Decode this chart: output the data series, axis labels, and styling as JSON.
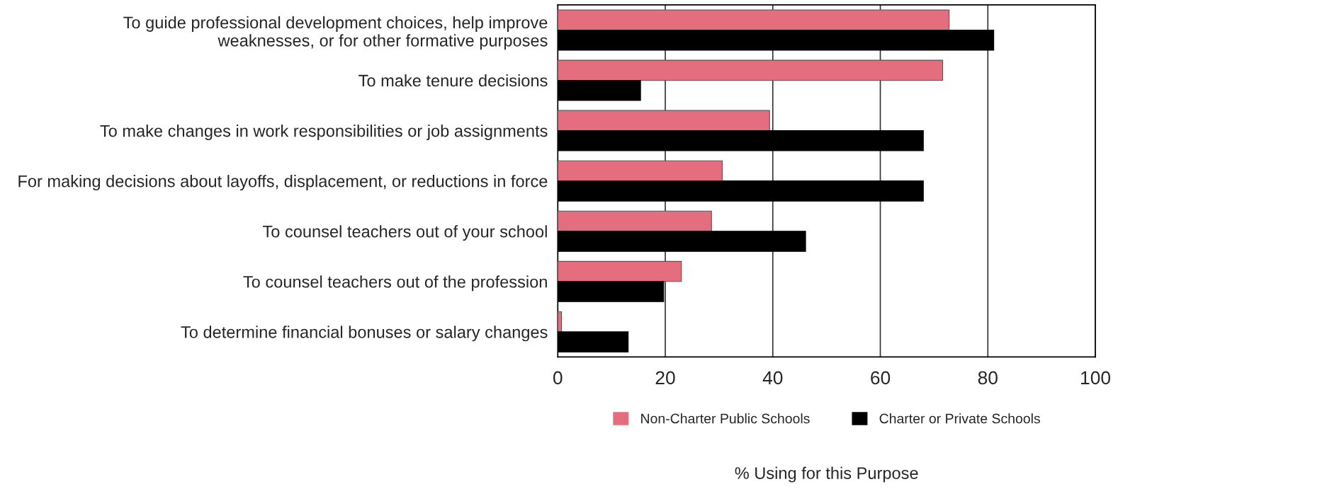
{
  "chart_data": {
    "type": "bar",
    "orientation": "horizontal",
    "xlabel": "% Using for this Purpose",
    "categories": [
      "To guide professional development choices, help improve\nweaknesses, or for other formative purposes",
      "To make tenure decisions",
      "To make changes in work responsibilities or job assignments",
      "For making decisions about layoffs, displacement, or reductions in force",
      "To counsel teachers out of your school",
      "To counsel teachers out of the profession",
      "To determine financial bonuses or salary changes"
    ],
    "series": [
      {
        "name": "Non-Charter Public Schools",
        "color": "#e46e7d",
        "values": [
          72.8,
          71.6,
          39.4,
          30.6,
          28.6,
          23.0,
          0.7
        ]
      },
      {
        "name": "Charter or Private Schools",
        "color": "#000000",
        "values": [
          81.1,
          15.4,
          68.0,
          68.0,
          46.1,
          19.7,
          13.1
        ]
      }
    ],
    "xlim": [
      0,
      100
    ],
    "xticks": [
      0,
      20,
      40,
      60,
      80,
      100
    ],
    "grid": "x",
    "legend": "bottom"
  }
}
